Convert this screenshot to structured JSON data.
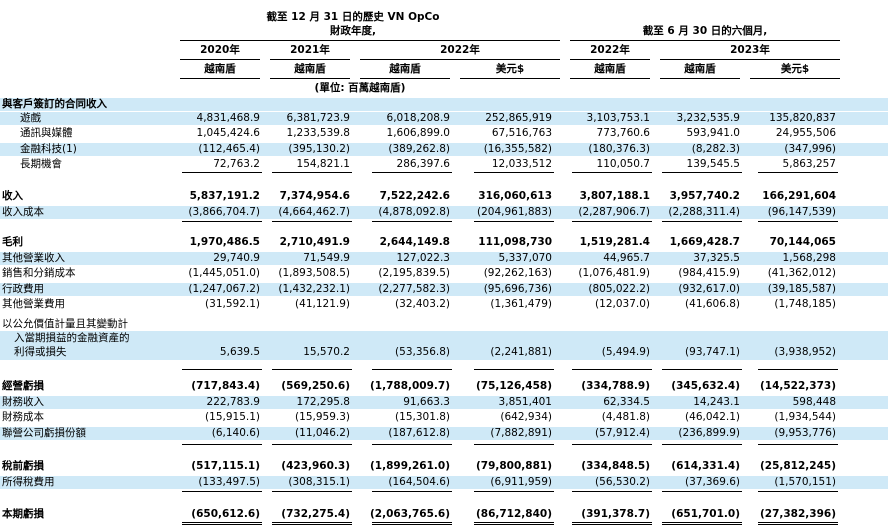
{
  "header": {
    "title_left": "截至 12 月 31 日的歷史 VN OpCo",
    "subtitle_left": "財政年度,",
    "title_right": "截至 6 月 30 日的六個月,",
    "years": [
      "2020年",
      "2021年",
      "2022年",
      "2022年",
      "2023年"
    ],
    "currencies": [
      "越南盾",
      "越南盾",
      "越南盾",
      "美元$",
      "越南盾",
      "越南盾",
      "美元$"
    ],
    "unit_note": "(單位: 百萬越南盾)"
  },
  "section_revenue_header": "與客戶簽訂的合同收入",
  "revenue_rows": [
    {
      "label": "遊戲",
      "values": [
        "4,831,468.9",
        "6,381,723.9",
        "6,018,208.9",
        "252,865,919",
        "3,103,753.1",
        "3,232,535.9",
        "135,820,837"
      ]
    },
    {
      "label": "通訊與媒體",
      "values": [
        "1,045,424.6",
        "1,233,539.8",
        "1,606,899.0",
        "67,516,763",
        "773,760.6",
        "593,941.0",
        "24,955,506"
      ]
    },
    {
      "label": "金融科技(1)",
      "values": [
        "(112,465.4)",
        "(395,130.2)",
        "(389,262.8)",
        "(16,355,582)",
        "(180,376.3)",
        "(8,282.3)",
        "(347,996)"
      ]
    },
    {
      "label": "長期機會",
      "values": [
        "72,763.2",
        "154,821.1",
        "286,397.6",
        "12,033,512",
        "110,050.7",
        "139,545.5",
        "5,863,257"
      ]
    }
  ],
  "revenue_total": {
    "label": "收入",
    "values": [
      "5,837,191.2",
      "7,374,954.6",
      "7,522,242.6",
      "316,060,613",
      "3,807,188.1",
      "3,957,740.2",
      "166,291,604"
    ]
  },
  "cost_of_revenue": {
    "label": "收入成本",
    "values": [
      "(3,866,704.7)",
      "(4,664,462.7)",
      "(4,878,092.8)",
      "(204,961,883)",
      "(2,287,906.7)",
      "(2,288,311.4)",
      "(96,147,539)"
    ]
  },
  "gross_profit": {
    "label": "毛利",
    "values": [
      "1,970,486.5",
      "2,710,491.9",
      "2,644,149.8",
      "111,098,730",
      "1,519,281.4",
      "1,669,428.7",
      "70,144,065"
    ]
  },
  "opex_rows": [
    {
      "label": "其他營業收入",
      "values": [
        "29,740.9",
        "71,549.9",
        "127,022.3",
        "5,337,070",
        "44,965.7",
        "37,325.5",
        "1,568,298"
      ]
    },
    {
      "label": "銷售和分銷成本",
      "values": [
        "(1,445,051.0)",
        "(1,893,508.5)",
        "(2,195,839.5)",
        "(92,262,163)",
        "(1,076,481.9)",
        "(984,415.9)",
        "(41,362,012)"
      ]
    },
    {
      "label": "行政費用",
      "values": [
        "(1,247,067.2)",
        "(1,432,232.1)",
        "(2,277,582.3)",
        "(95,696,736)",
        "(805,022.2)",
        "(932,617.0)",
        "(39,185,587)"
      ]
    },
    {
      "label": "其他營業費用",
      "values": [
        "(31,592.1)",
        "(41,121.9)",
        "(32,403.2)",
        "(1,361,479)",
        "(12,037.0)",
        "(41,606.8)",
        "(1,748,185)"
      ]
    }
  ],
  "fair_value_row": {
    "label_lines": [
      "以公允價值計量且其變動計",
      "入當期損益的金融資產的",
      "利得或損失"
    ],
    "values": [
      "5,639.5",
      "15,570.2",
      "(53,356.8)",
      "(2,241,881)",
      "(5,494.9)",
      "(93,747.1)",
      "(3,938,952)"
    ]
  },
  "operating_loss": {
    "label": "經營虧損",
    "values": [
      "(717,843.4)",
      "(569,250.6)",
      "(1,788,009.7)",
      "(75,126,458)",
      "(334,788.9)",
      "(345,632.4)",
      "(14,522,373)"
    ]
  },
  "finance_rows": [
    {
      "label": "財務收入",
      "values": [
        "222,783.9",
        "172,295.8",
        "91,663.3",
        "3,851,401",
        "62,334.5",
        "14,243.1",
        "598,448"
      ]
    },
    {
      "label": "財務成本",
      "values": [
        "(15,915.1)",
        "(15,959.3)",
        "(15,301.8)",
        "(642,934)",
        "(4,481.8)",
        "(46,042.1)",
        "(1,934,544)"
      ]
    },
    {
      "label": "聯營公司虧損份額",
      "values": [
        "(6,140.6)",
        "(11,046.2)",
        "(187,612.8)",
        "(7,882,891)",
        "(57,912.4)",
        "(236,899.9)",
        "(9,953,776)"
      ]
    }
  ],
  "pretax_loss": {
    "label": "稅前虧損",
    "values": [
      "(517,115.1)",
      "(423,960.3)",
      "(1,899,261.0)",
      "(79,800,881)",
      "(334,848.5)",
      "(614,331.4)",
      "(25,812,245)"
    ]
  },
  "income_tax": {
    "label": "所得稅費用",
    "values": [
      "(133,497.5)",
      "(308,315.1)",
      "(164,504.6)",
      "(6,911,959)",
      "(56,530.2)",
      "(37,369.6)",
      "(1,570,151)"
    ]
  },
  "net_loss": {
    "label": "本期虧損",
    "values": [
      "(650,612.6)",
      "(732,275.4)",
      "(2,063,765.6)",
      "(86,712,840)",
      "(391,378.7)",
      "(651,701.0)",
      "(27,382,396)"
    ]
  }
}
